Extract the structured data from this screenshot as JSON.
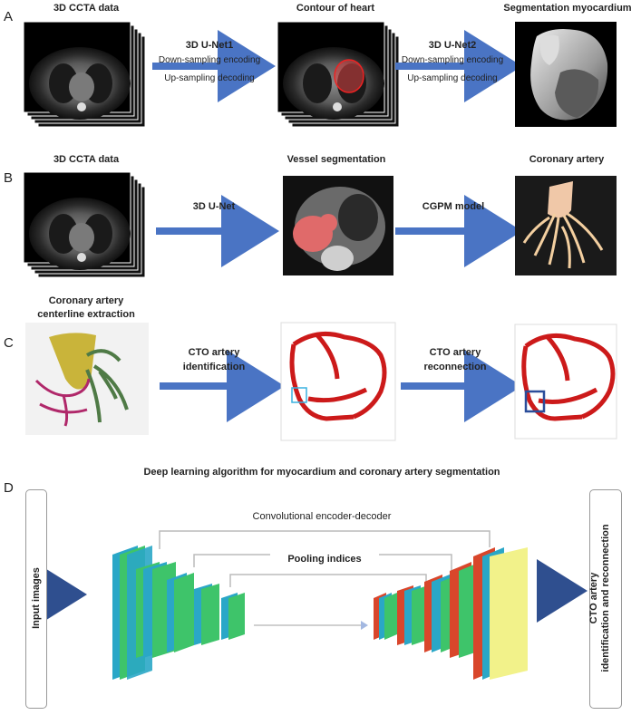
{
  "panels": {
    "A": {
      "letter": "A",
      "input_caption": "3D CCTA data",
      "step1_title": "3D U-Net1",
      "step1_line1": "Down-sampling encoding",
      "step1_line2": "Up-sampling decoding",
      "middle_caption": "Contour of heart",
      "step2_title": "3D U-Net2",
      "step2_line1": "Down-sampling encoding",
      "step2_line2": "Up-sampling decoding",
      "output_caption": "Segmentation myocardium"
    },
    "B": {
      "letter": "B",
      "input_caption": "3D CCTA data",
      "step1_title": "3D U-Net",
      "middle_caption": "Vessel segmentation",
      "step2_title": "CGPM model",
      "output_caption": "Coronary artery"
    },
    "C": {
      "letter": "C",
      "input_caption_line1": "Coronary artery",
      "input_caption_line2": "centerline extraction",
      "step1_line1": "CTO artery",
      "step1_line2": "identification",
      "step2_line1": "CTO artery",
      "step2_line2": "reconnection"
    },
    "D": {
      "letter": "D",
      "title": "Deep learning algorithm for myocardium and coronary artery segmentation",
      "input_label": "Input images",
      "encoder_decoder_label": "Convolutional encoder-decoder",
      "pooling_label": "Pooling indices",
      "output_line1": "CTO artery",
      "output_line2": "identification and reconnection"
    }
  },
  "colors": {
    "arrow": "#4a74c4",
    "dark_arrow": "#2f4f8f",
    "heart_red": "#cc2020",
    "layer_blue": "#2aa7c7",
    "layer_green": "#3ec46a",
    "layer_red": "#d9462b",
    "layer_yellow": "#f2f28a"
  }
}
